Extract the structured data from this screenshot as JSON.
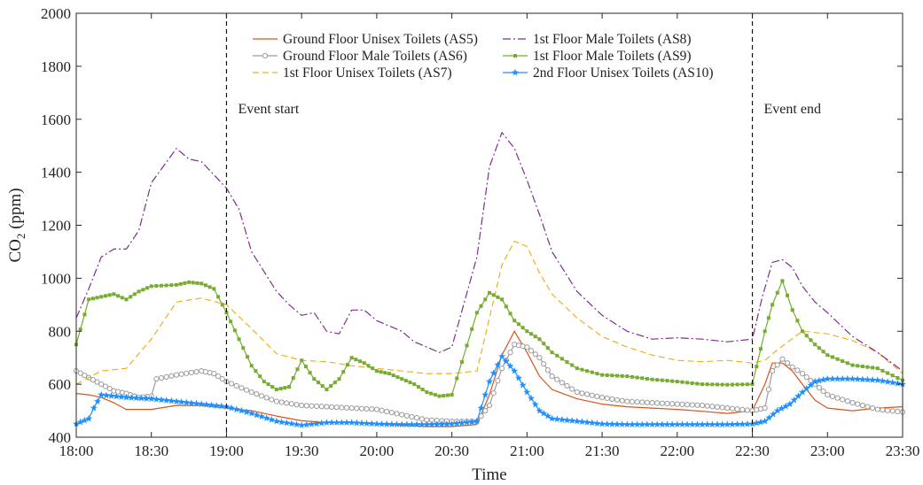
{
  "chart_data": {
    "type": "line",
    "xlabel": "Time",
    "ylabel": "CO",
    "ylabel_sub": "2",
    "ylabel_unit": " (ppm)",
    "ylim": [
      400,
      2000
    ],
    "yticks": [
      400,
      600,
      800,
      1000,
      1200,
      1400,
      1600,
      1800,
      2000
    ],
    "xlim": [
      "18:00",
      "23:30"
    ],
    "xticks": [
      "18:00",
      "18:30",
      "19:00",
      "19:30",
      "20:00",
      "20:30",
      "21:00",
      "21:30",
      "22:00",
      "22:30",
      "23:00",
      "23:30"
    ],
    "grid": false,
    "legend_position": "top",
    "events": [
      {
        "time": "19:00",
        "label": "Event start"
      },
      {
        "time": "22:30",
        "label": "Event end"
      }
    ],
    "series": [
      {
        "name": "Ground Floor Unisex Toilets (AS5)",
        "color": "#d95319",
        "style": "solid",
        "marker": "none",
        "x": [
          "18:00",
          "18:05",
          "18:10",
          "18:15",
          "18:20",
          "18:30",
          "18:40",
          "18:50",
          "19:00",
          "19:10",
          "19:20",
          "19:30",
          "19:40",
          "19:50",
          "20:00",
          "20:10",
          "20:20",
          "20:30",
          "20:40",
          "20:45",
          "20:50",
          "20:55",
          "21:00",
          "21:05",
          "21:10",
          "21:20",
          "21:30",
          "21:40",
          "21:50",
          "22:00",
          "22:10",
          "22:20",
          "22:30",
          "22:35",
          "22:38",
          "22:42",
          "22:46",
          "22:50",
          "22:55",
          "23:00",
          "23:10",
          "23:20",
          "23:30"
        ],
        "values": [
          565,
          560,
          550,
          530,
          505,
          505,
          520,
          520,
          510,
          500,
          480,
          462,
          455,
          455,
          450,
          445,
          440,
          440,
          448,
          560,
          710,
          800,
          720,
          630,
          580,
          545,
          525,
          515,
          510,
          505,
          498,
          490,
          500,
          600,
          680,
          680,
          650,
          600,
          540,
          510,
          500,
          510,
          515
        ]
      },
      {
        "name": "Ground Floor Male Toilets (AS6)",
        "color": "#9c9c9c",
        "style": "solid",
        "marker": "circle",
        "x": [
          "18:00",
          "18:05",
          "18:10",
          "18:15",
          "18:20",
          "18:25",
          "18:30",
          "18:32",
          "18:40",
          "18:50",
          "18:55",
          "19:00",
          "19:10",
          "19:20",
          "19:30",
          "19:40",
          "19:50",
          "20:00",
          "20:10",
          "20:20",
          "20:30",
          "20:40",
          "20:45",
          "20:50",
          "20:55",
          "21:00",
          "21:05",
          "21:10",
          "21:20",
          "21:30",
          "21:40",
          "21:50",
          "22:00",
          "22:10",
          "22:20",
          "22:30",
          "22:35",
          "22:38",
          "22:42",
          "22:46",
          "22:50",
          "22:55",
          "23:00",
          "23:10",
          "23:20",
          "23:30"
        ],
        "values": [
          650,
          625,
          600,
          575,
          565,
          550,
          555,
          620,
          635,
          650,
          640,
          610,
          570,
          535,
          520,
          515,
          510,
          505,
          485,
          465,
          460,
          460,
          520,
          660,
          750,
          740,
          700,
          630,
          570,
          550,
          535,
          530,
          525,
          520,
          510,
          500,
          510,
          650,
          695,
          665,
          640,
          600,
          560,
          530,
          505,
          495
        ]
      },
      {
        "name": "1st Floor Unisex Toilets (AS7)",
        "color": "#edb120",
        "style": "dashed",
        "marker": "none",
        "x": [
          "18:00",
          "18:10",
          "18:20",
          "18:30",
          "18:40",
          "18:50",
          "19:00",
          "19:10",
          "19:20",
          "19:30",
          "19:40",
          "19:50",
          "20:00",
          "20:10",
          "20:20",
          "20:30",
          "20:40",
          "20:45",
          "20:50",
          "20:55",
          "21:00",
          "21:05",
          "21:10",
          "21:20",
          "21:30",
          "21:40",
          "21:50",
          "22:00",
          "22:10",
          "22:20",
          "22:30",
          "22:35",
          "22:40",
          "22:50",
          "23:00",
          "23:10",
          "23:20",
          "23:30"
        ],
        "values": [
          600,
          650,
          660,
          770,
          910,
          925,
          900,
          810,
          715,
          690,
          685,
          670,
          660,
          650,
          640,
          640,
          650,
          850,
          1050,
          1140,
          1120,
          1020,
          940,
          850,
          780,
          740,
          710,
          690,
          685,
          690,
          680,
          690,
          730,
          800,
          790,
          765,
          720,
          640
        ]
      },
      {
        "name": "1st Floor Male Toilets (AS8)",
        "color": "#7e2f8e",
        "style": "dashdot",
        "marker": "none",
        "x": [
          "18:00",
          "18:05",
          "18:10",
          "18:15",
          "18:20",
          "18:25",
          "18:30",
          "18:40",
          "18:45",
          "18:50",
          "18:55",
          "19:00",
          "19:05",
          "19:10",
          "19:20",
          "19:25",
          "19:30",
          "19:35",
          "19:40",
          "19:45",
          "19:50",
          "19:55",
          "20:00",
          "20:05",
          "20:10",
          "20:15",
          "20:20",
          "20:25",
          "20:30",
          "20:40",
          "20:45",
          "20:50",
          "20:55",
          "21:00",
          "21:05",
          "21:10",
          "21:20",
          "21:30",
          "21:40",
          "21:50",
          "22:00",
          "22:10",
          "22:20",
          "22:30",
          "22:34",
          "22:38",
          "22:42",
          "22:46",
          "22:50",
          "22:55",
          "23:00",
          "23:10",
          "23:20",
          "23:30"
        ],
        "values": [
          850,
          960,
          1080,
          1110,
          1110,
          1180,
          1360,
          1490,
          1450,
          1440,
          1390,
          1340,
          1260,
          1100,
          950,
          900,
          860,
          870,
          800,
          790,
          880,
          880,
          840,
          820,
          800,
          760,
          740,
          720,
          740,
          1080,
          1420,
          1550,
          1490,
          1370,
          1240,
          1100,
          950,
          860,
          800,
          770,
          775,
          770,
          760,
          770,
          930,
          1060,
          1070,
          1040,
          970,
          910,
          870,
          780,
          720,
          650
        ]
      },
      {
        "name": "1st Floor Male Toilets (AS9)",
        "color": "#77ac30",
        "style": "solid",
        "marker": "square",
        "x": [
          "18:00",
          "18:05",
          "18:10",
          "18:15",
          "18:20",
          "18:25",
          "18:30",
          "18:40",
          "18:45",
          "18:50",
          "18:55",
          "19:00",
          "19:05",
          "19:10",
          "19:15",
          "19:20",
          "19:25",
          "19:30",
          "19:35",
          "19:40",
          "19:45",
          "19:50",
          "19:55",
          "20:00",
          "20:05",
          "20:10",
          "20:15",
          "20:20",
          "20:25",
          "20:30",
          "20:40",
          "20:45",
          "20:50",
          "20:55",
          "21:00",
          "21:05",
          "21:10",
          "21:20",
          "21:30",
          "21:40",
          "21:50",
          "22:00",
          "22:10",
          "22:20",
          "22:30",
          "22:35",
          "22:38",
          "22:42",
          "22:46",
          "22:50",
          "22:55",
          "23:00",
          "23:10",
          "23:20",
          "23:30"
        ],
        "values": [
          750,
          920,
          930,
          940,
          920,
          950,
          970,
          975,
          985,
          980,
          960,
          870,
          770,
          670,
          610,
          580,
          590,
          690,
          620,
          580,
          620,
          700,
          680,
          650,
          640,
          620,
          600,
          570,
          555,
          560,
          870,
          945,
          920,
          840,
          800,
          770,
          720,
          660,
          635,
          630,
          618,
          610,
          600,
          598,
          600,
          800,
          900,
          990,
          880,
          800,
          750,
          710,
          672,
          660,
          615
        ]
      },
      {
        "name": "2nd Floor Unisex Toilets (AS10)",
        "color": "#1e90ff",
        "style": "solid",
        "marker": "star",
        "x": [
          "18:00",
          "18:05",
          "18:07",
          "18:10",
          "18:20",
          "18:30",
          "18:40",
          "18:50",
          "19:00",
          "19:10",
          "19:20",
          "19:30",
          "19:40",
          "19:50",
          "20:00",
          "20:10",
          "20:20",
          "20:30",
          "20:40",
          "20:45",
          "20:50",
          "20:55",
          "21:00",
          "21:05",
          "21:10",
          "21:20",
          "21:30",
          "21:40",
          "21:50",
          "22:00",
          "22:10",
          "22:20",
          "22:30",
          "22:35",
          "22:40",
          "22:45",
          "22:50",
          "22:55",
          "23:00",
          "23:10",
          "23:20",
          "23:30"
        ],
        "values": [
          450,
          470,
          510,
          560,
          550,
          545,
          535,
          525,
          515,
          490,
          460,
          445,
          455,
          455,
          450,
          448,
          448,
          450,
          460,
          610,
          705,
          650,
          570,
          500,
          470,
          460,
          450,
          448,
          448,
          448,
          448,
          448,
          450,
          460,
          500,
          525,
          570,
          610,
          620,
          620,
          615,
          600
        ]
      }
    ]
  }
}
